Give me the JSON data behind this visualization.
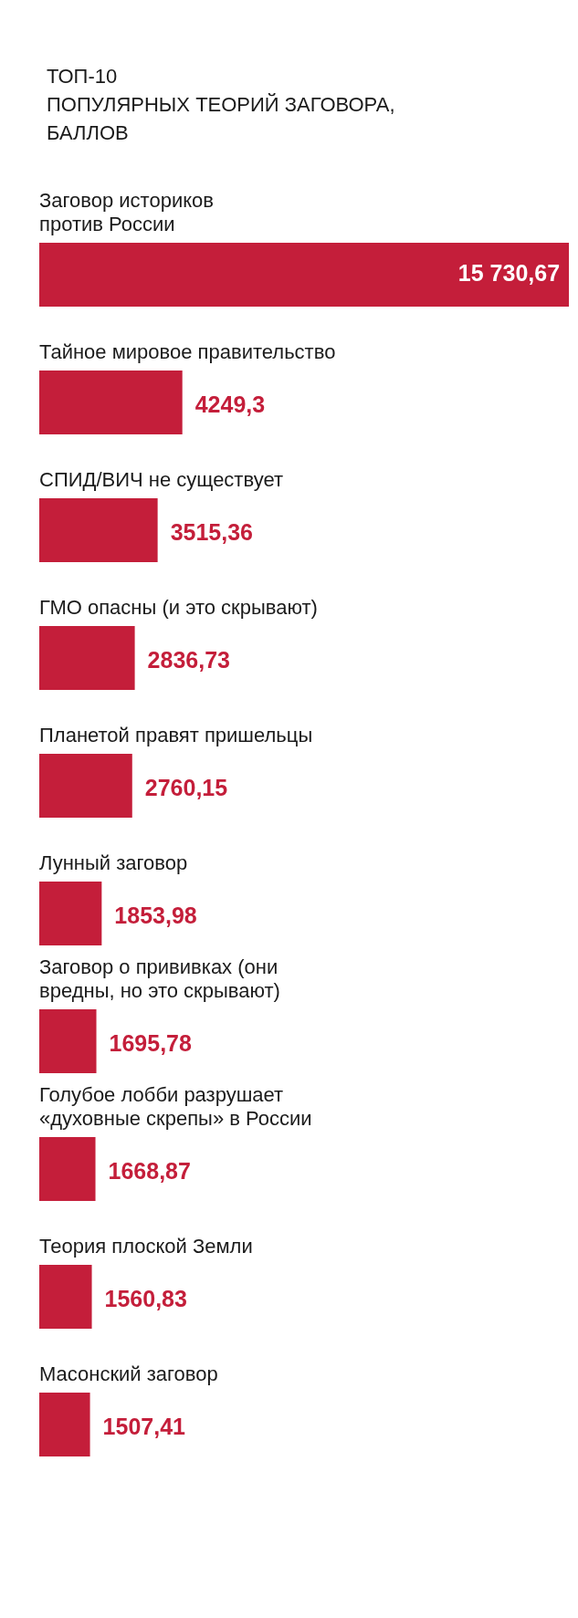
{
  "chart_data": {
    "type": "bar",
    "orientation": "horizontal",
    "title": "ТОП-10\nПОПУЛЯРНЫХ ТЕОРИЙ ЗАГОВОРА,\nБАЛЛОВ",
    "categories": [
      "Заговор историков\nпротив России",
      "Тайное мировое правительство",
      "СПИД/ВИЧ не существует",
      "ГМО опасны (и это скрывают)",
      "Планетой правят пришельцы",
      "Лунный заговор",
      "Заговор о прививках (они\nвредны, но это скрывают)",
      "Голубое лобби разрушает\n«духовные скрепы» в России",
      "Теория плоской Земли",
      "Масонский заговор"
    ],
    "values": [
      15730.67,
      4249.3,
      3515.36,
      2836.73,
      2760.15,
      1853.98,
      1695.78,
      1668.87,
      1560.83,
      1507.41
    ],
    "value_labels": [
      "15 730,67",
      "4249,3",
      "3515,36",
      "2836,73",
      "2760,15",
      "1853,98",
      "1695,78",
      "1668,87",
      "1560,83",
      "1507,41"
    ],
    "color": "#c41e3a"
  }
}
